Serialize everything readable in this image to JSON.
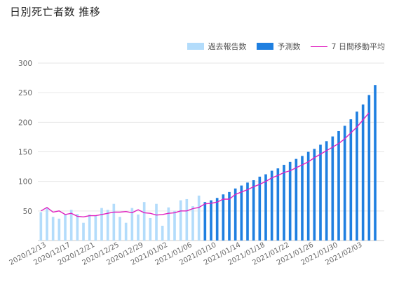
{
  "header": {
    "title": "日別死亡者数 推移"
  },
  "colors": {
    "reported": "#b3dcfb",
    "forecast": "#1f7fe0",
    "average": "#e020c0",
    "grid": "#e6e6e6"
  },
  "legend": {
    "items": [
      {
        "label": "過去報告数",
        "color": "#b3dcfb",
        "kind": "box"
      },
      {
        "label": "予測数",
        "color": "#1f7fe0",
        "kind": "box"
      },
      {
        "label": "7 日間移動平均",
        "color": "#e020c0",
        "kind": "line"
      }
    ]
  },
  "chart_data": {
    "type": "bar",
    "title": "日別死亡者数 推移",
    "xlabel": "",
    "ylabel": "",
    "ylim": [
      0,
      300
    ],
    "yticks": [
      50,
      100,
      150,
      200,
      250,
      300
    ],
    "grid": true,
    "legend_position": "top-right",
    "x": [
      "2020/12/13",
      "2020/12/14",
      "2020/12/15",
      "2020/12/16",
      "2020/12/17",
      "2020/12/18",
      "2020/12/19",
      "2020/12/20",
      "2020/12/21",
      "2020/12/22",
      "2020/12/23",
      "2020/12/24",
      "2020/12/25",
      "2020/12/26",
      "2020/12/27",
      "2020/12/28",
      "2020/12/29",
      "2020/12/30",
      "2020/12/31",
      "2021/01/01",
      "2021/01/02",
      "2021/01/03",
      "2021/01/04",
      "2021/01/05",
      "2021/01/06",
      "2021/01/07",
      "2021/01/08",
      "2021/01/09",
      "2021/01/10",
      "2021/01/11",
      "2021/01/12",
      "2021/01/13",
      "2021/01/14",
      "2021/01/15",
      "2021/01/16",
      "2021/01/17",
      "2021/01/18",
      "2021/01/19",
      "2021/01/20",
      "2021/01/21",
      "2021/01/22",
      "2021/01/23",
      "2021/01/24",
      "2021/01/25",
      "2021/01/26",
      "2021/01/27",
      "2021/01/28",
      "2021/01/29",
      "2021/01/30",
      "2021/01/31",
      "2021/02/01",
      "2021/02/02",
      "2021/02/03",
      "2021/02/04",
      "2021/02/05",
      "2021/02/06",
      "2021/02/07"
    ],
    "x_tick_labels": [
      "2020/12/13",
      "2020/12/17",
      "2020/12/21",
      "2020/12/25",
      "2020/12/29",
      "2021/01/02",
      "2021/01/06",
      "2021/01/10",
      "2021/01/14",
      "2021/01/18",
      "2021/01/22",
      "2021/01/26",
      "2021/01/30",
      "2021/02/03"
    ],
    "series": [
      {
        "name": "過去報告数",
        "kind": "bar",
        "values": [
          48,
          55,
          40,
          37,
          44,
          52,
          45,
          30,
          44,
          42,
          55,
          52,
          62,
          40,
          30,
          55,
          44,
          65,
          38,
          62,
          25,
          56,
          50,
          68,
          70,
          58,
          76,
          0,
          0,
          0,
          0,
          0,
          0,
          0,
          0,
          0,
          0,
          0,
          0,
          0,
          0,
          0,
          0,
          0,
          0,
          0,
          0,
          0,
          0,
          0,
          0,
          0,
          0,
          0,
          0,
          0,
          0
        ]
      },
      {
        "name": "予測数",
        "kind": "bar",
        "values": [
          0,
          0,
          0,
          0,
          0,
          0,
          0,
          0,
          0,
          0,
          0,
          0,
          0,
          0,
          0,
          0,
          0,
          0,
          0,
          0,
          0,
          0,
          0,
          0,
          0,
          0,
          0,
          65,
          68,
          72,
          78,
          82,
          88,
          93,
          98,
          102,
          108,
          112,
          118,
          122,
          128,
          133,
          138,
          143,
          150,
          155,
          162,
          168,
          176,
          185,
          194,
          205,
          218,
          230,
          246,
          263,
          0
        ]
      },
      {
        "name": "7 日間移動平均",
        "kind": "line",
        "values": [
          50,
          56,
          48,
          50,
          44,
          46,
          41,
          40,
          42,
          42,
          44,
          46,
          48,
          48,
          49,
          47,
          52,
          47,
          46,
          43,
          44,
          46,
          47,
          50,
          50,
          54,
          56,
          62,
          63,
          65,
          70,
          70,
          78,
          82,
          86,
          91,
          95,
          100,
          106,
          110,
          115,
          118,
          123,
          128,
          133,
          140,
          146,
          152,
          158,
          164,
          172,
          182,
          192,
          204,
          216,
          null,
          null
        ]
      }
    ]
  }
}
